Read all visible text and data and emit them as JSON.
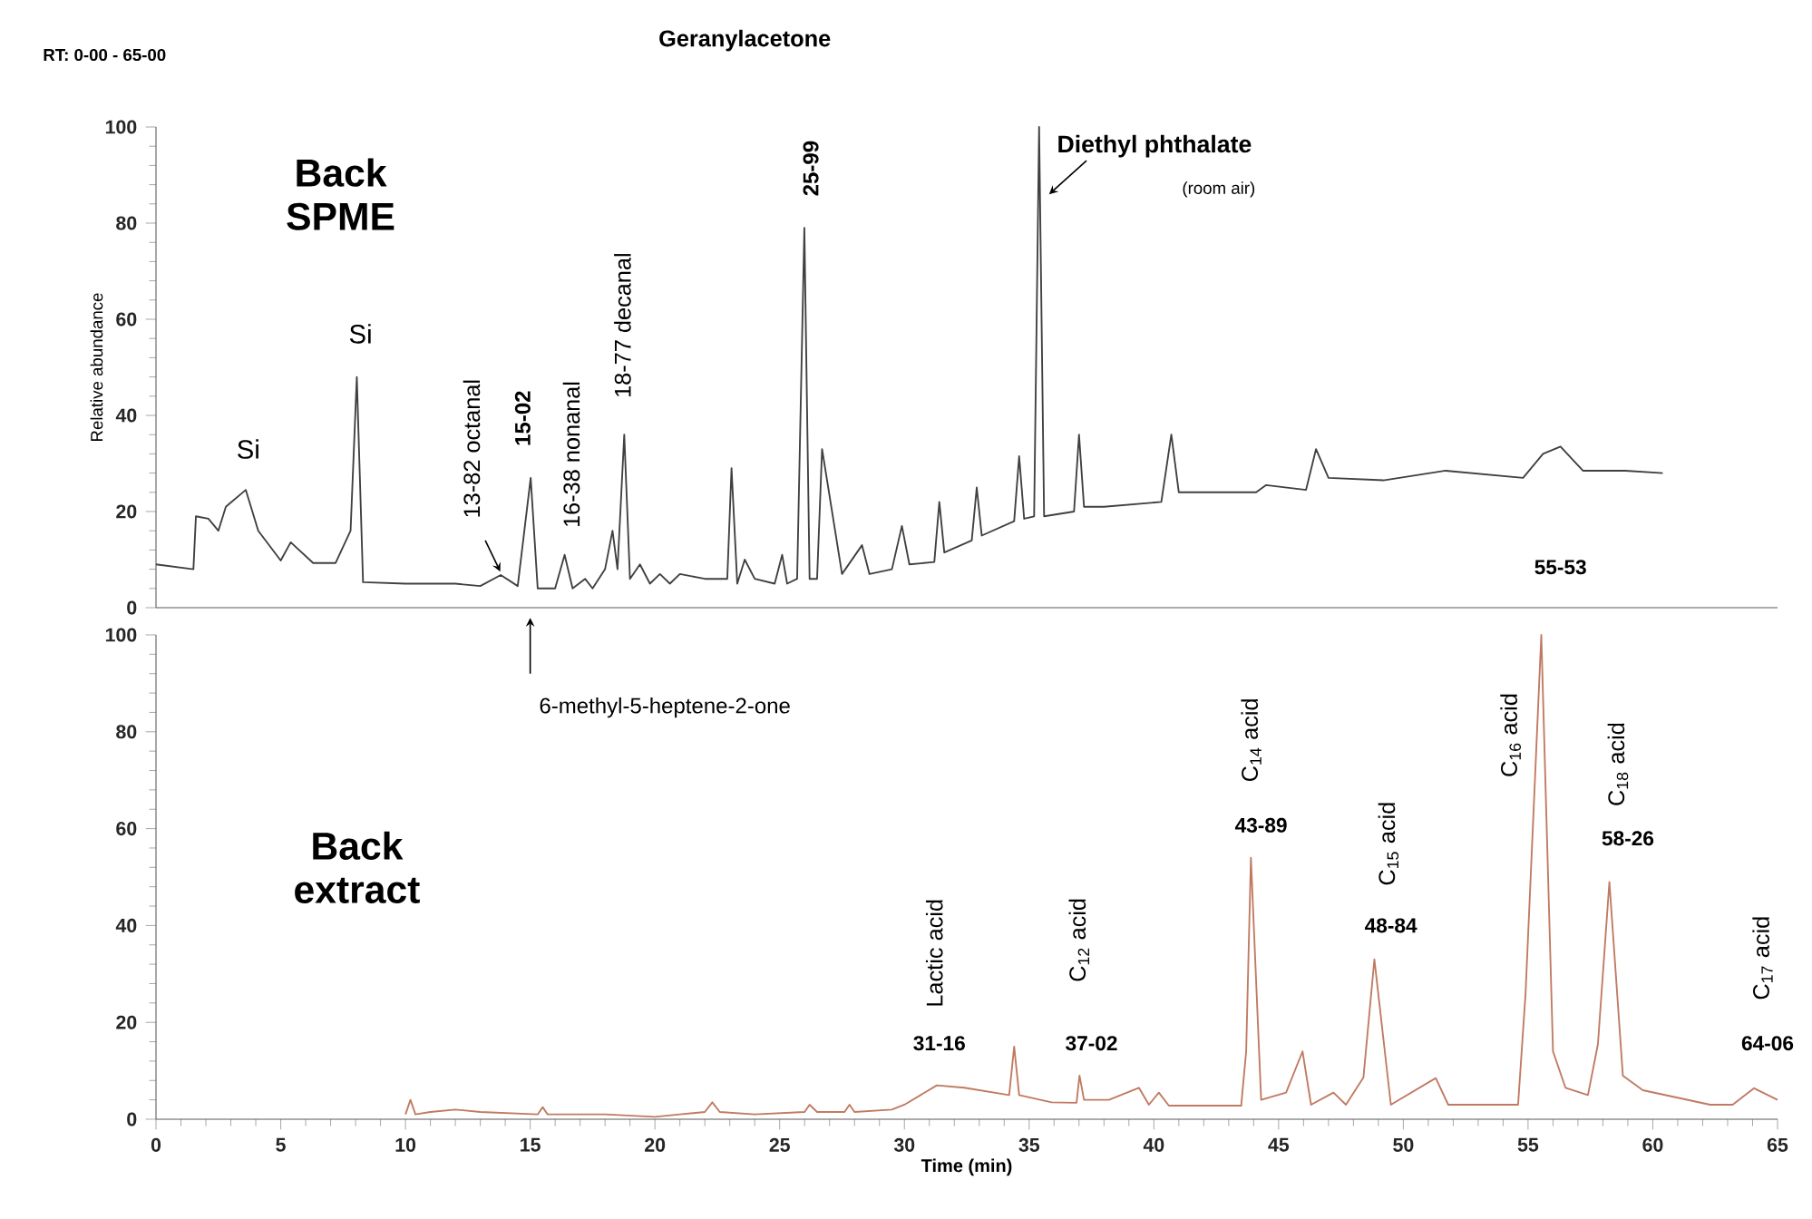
{
  "chart_data": [
    {
      "type": "line",
      "ylabel": "Relative abundance",
      "xlim": [
        0,
        65
      ],
      "ylim": [
        0,
        100
      ],
      "yticks": [
        0,
        20,
        40,
        60,
        80,
        100
      ],
      "tick_labels": "y",
      "series": [
        {
          "color": "#404040",
          "x": [
            0,
            1.5,
            1.6,
            2.1,
            2.5,
            2.8,
            3.6,
            4.1,
            5.0,
            5.4,
            6.3,
            7.2,
            7.8,
            8.05,
            8.3,
            10,
            12,
            13,
            13.82,
            14.5,
            15.02,
            15.3,
            16,
            16.38,
            16.7,
            17.2,
            17.5,
            18,
            18.3,
            18.5,
            18.77,
            19.0,
            19.4,
            19.8,
            20.2,
            20.6,
            21,
            22,
            22.9,
            23.07,
            23.3,
            23.6,
            24,
            24.8,
            25.1,
            25.3,
            25.7,
            25.99,
            26.2,
            26.5,
            26.7,
            27.5,
            28.3,
            28.6,
            29.5,
            29.9,
            30.2,
            31.2,
            31.4,
            31.6,
            32.7,
            32.9,
            33.1,
            34.4,
            34.6,
            34.8,
            35.2,
            35.4,
            35.6,
            36.8,
            37.0,
            37.2,
            38,
            40.3,
            40.7,
            41.0,
            44.1,
            44.5,
            46.1,
            46.5,
            47.0,
            49.2,
            51.7,
            54.8,
            55.6,
            56.3,
            57.2,
            58.9,
            60.4
          ],
          "values": [
            9,
            8,
            19,
            18.5,
            16,
            21,
            24.5,
            16,
            9.8,
            13.6,
            9.3,
            9.3,
            16,
            48,
            5.3,
            5,
            5,
            4.5,
            6.8,
            4.5,
            27,
            4,
            4,
            11,
            4,
            6,
            4,
            8,
            16,
            8,
            36,
            6,
            9,
            5,
            7,
            5,
            7,
            6,
            6,
            29,
            5,
            10,
            6,
            5,
            11,
            5,
            6,
            79,
            6,
            6,
            33,
            7,
            13,
            7,
            8,
            17,
            9,
            9.5,
            22,
            11.5,
            14,
            25,
            15,
            18,
            31.5,
            18.5,
            19,
            100,
            19,
            20,
            36,
            21,
            21,
            22,
            36,
            24,
            24,
            25.5,
            24.5,
            33,
            27,
            26.5,
            28.5,
            27,
            32,
            33.5,
            28.5,
            28.5,
            28
          ]
        }
      ],
      "annotations": [
        "RT: 0-00 - 65-00",
        "Geranylacetone",
        "Back SPME",
        "Si",
        "Si",
        "13-82 octanal",
        "15-02",
        "16-38 nonanal",
        "18-77 decanal",
        "25-99",
        "Diethyl phthalate",
        "(room air)"
      ]
    },
    {
      "type": "line",
      "xlabel": "Time (min)",
      "xlim": [
        0,
        65
      ],
      "ylim": [
        0,
        100
      ],
      "xticks": [
        0,
        5,
        10,
        15,
        20,
        25,
        30,
        35,
        40,
        45,
        50,
        55,
        60,
        65
      ],
      "yticks": [
        0,
        20,
        40,
        60,
        80,
        100
      ],
      "series": [
        {
          "color": "#c07a62",
          "x": [
            10,
            10.2,
            10.4,
            11,
            12,
            13,
            15.3,
            15.5,
            15.7,
            18,
            20,
            21,
            22,
            22.3,
            22.6,
            24,
            26,
            26.2,
            26.5,
            27.6,
            27.8,
            28,
            29.5,
            30,
            31.3,
            32.4,
            34.2,
            34.4,
            34.6,
            35.9,
            36.9,
            37.02,
            37.2,
            38.2,
            39.4,
            39.8,
            40.2,
            40.6,
            43.5,
            43.7,
            43.89,
            44.3,
            45.3,
            45.96,
            46.3,
            47.2,
            47.7,
            48.4,
            48.84,
            49.5,
            51.3,
            51.8,
            54.6,
            54.9,
            55.53,
            56.0,
            56.5,
            57.4,
            57.8,
            58.26,
            58.8,
            59.6,
            62.3,
            63.2,
            64.06,
            65
          ],
          "values": [
            1,
            4,
            1,
            1.5,
            2,
            1.5,
            1,
            2.5,
            1,
            1,
            0.5,
            1,
            1.5,
            3.5,
            1.5,
            1,
            1.5,
            3,
            1.5,
            1.5,
            3,
            1.5,
            2,
            3,
            7,
            6.5,
            5,
            15,
            5,
            3.5,
            3.4,
            9,
            4,
            4,
            6.5,
            3,
            5.5,
            2.8,
            2.8,
            14,
            54,
            4,
            5.5,
            14,
            3,
            5.5,
            3,
            8.6,
            33,
            3,
            8.5,
            3,
            3,
            26,
            100,
            14,
            6.5,
            5,
            15.5,
            49,
            9,
            6,
            3,
            3,
            6.4,
            4
          ]
        }
      ],
      "annotations": [
        "6-methyl-5-heptene-2-one",
        "Back extract",
        "Lactic acid",
        "31-16",
        "C$_{12}$ acid",
        "37-02",
        "C$_{14}$ acid",
        "43-89",
        "C$_{15}$ acid",
        "48-84",
        "C$_{16}$ acid",
        "55-53",
        "C$_{18}$ acid",
        "58-26",
        "C$_{17}$ acid",
        "64-06"
      ]
    }
  ]
}
